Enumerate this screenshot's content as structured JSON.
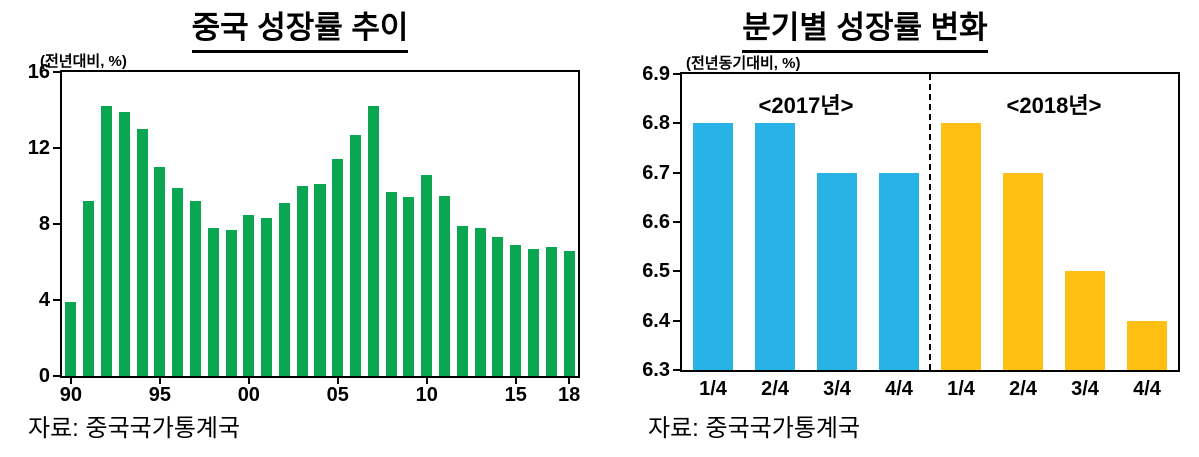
{
  "page": {
    "background": "#ffffff"
  },
  "chart_data": [
    {
      "type": "bar",
      "title": "중국 성장률 추이",
      "ylabel": "(전년대비, %)",
      "source": "자료: 중국국가통계국",
      "bar_color": "#0ba652",
      "ylim": [
        0,
        16
      ],
      "yticks": [
        0,
        4,
        8,
        12,
        16
      ],
      "ytick_decimals": 0,
      "grid": false,
      "legend": "none",
      "categories": [
        "1990",
        "1991",
        "1992",
        "1993",
        "1994",
        "1995",
        "1996",
        "1997",
        "1998",
        "1999",
        "2000",
        "2001",
        "2002",
        "2003",
        "2004",
        "2005",
        "2006",
        "2007",
        "2008",
        "2009",
        "2010",
        "2011",
        "2012",
        "2013",
        "2014",
        "2015",
        "2016",
        "2017",
        "2018"
      ],
      "values": [
        3.9,
        9.2,
        14.2,
        13.9,
        13.0,
        11.0,
        9.9,
        9.2,
        7.8,
        7.7,
        8.5,
        8.3,
        9.1,
        10.0,
        10.1,
        11.4,
        12.7,
        14.2,
        9.7,
        9.4,
        10.6,
        9.5,
        7.9,
        7.8,
        7.3,
        6.9,
        6.7,
        6.8,
        6.6
      ],
      "xticks": [
        {
          "index": 0,
          "label": "90"
        },
        {
          "index": 5,
          "label": "95"
        },
        {
          "index": 10,
          "label": "00"
        },
        {
          "index": 15,
          "label": "05"
        },
        {
          "index": 20,
          "label": "10"
        },
        {
          "index": 25,
          "label": "15"
        },
        {
          "index": 28,
          "label": "18"
        }
      ],
      "show_xticks": true
    },
    {
      "type": "bar",
      "title": "분기별 성장률 변화",
      "ylabel": "(전년동기대비, %)",
      "source": "자료: 중국국가통계국",
      "ylim": [
        6.3,
        6.9
      ],
      "yticks": [
        6.3,
        6.4,
        6.5,
        6.6,
        6.7,
        6.8,
        6.9
      ],
      "ytick_decimals": 1,
      "grid": false,
      "legend": "inside-top",
      "categories": [
        "1/4",
        "2/4",
        "3/4",
        "4/4"
      ],
      "series": [
        {
          "name": "<2017년>",
          "color": "#29b2e6",
          "values": [
            6.8,
            6.8,
            6.7,
            6.7
          ]
        },
        {
          "name": "<2018년>",
          "color": "#ffc013",
          "values": [
            6.8,
            6.7,
            6.5,
            6.4
          ]
        }
      ],
      "separator": "dashed",
      "show_xticks": false
    }
  ]
}
